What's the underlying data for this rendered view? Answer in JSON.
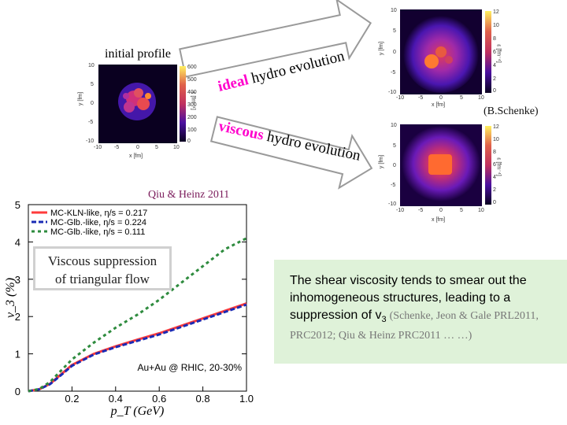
{
  "annotations": {
    "initial_profile": "initial profile",
    "ideal_word": "ideal",
    "ideal_rest": " hydro evolution",
    "viscous_word": "viscous",
    "viscous_rest": " hydro evolution",
    "schenke_credit": "(B.Schenke)",
    "qiu_credit": "Qiu & Heinz 2011"
  },
  "callout": {
    "line1": "Viscous suppression",
    "line2": "of triangular flow"
  },
  "note": {
    "text_before_v": "The shear viscosity tends to smear out the inhomogeneous structures, leading to a suppression of ",
    "v_symbol": "v",
    "v_subscript": "3",
    "citation": "(Schenke, Jeon & Gale PRL2011, PRC2012; Qiu & Heinz PRC2011 … …)"
  },
  "heatmaps": {
    "initial": {
      "x_label": "x [fm]",
      "y_label": "y [fm]",
      "cbar_label": "ε [fm⁻⁴]",
      "x_ticks": [
        "-10",
        "-5",
        "0",
        "5",
        "10"
      ],
      "y_ticks": [
        "10",
        "5",
        "0",
        "-5",
        "-10"
      ],
      "cbar_ticks": [
        "600",
        "500",
        "400",
        "300",
        "200",
        "100",
        "0"
      ]
    },
    "ideal": {
      "x_label": "x [fm]",
      "y_label": "y [fm]",
      "cbar_label": "ε [fm⁻⁴]",
      "x_ticks": [
        "-10",
        "-5",
        "0",
        "5",
        "10"
      ],
      "y_ticks": [
        "10",
        "5",
        "0",
        "-5",
        "-10"
      ],
      "cbar_ticks": [
        "12",
        "10",
        "8",
        "6",
        "4",
        "2",
        "0"
      ]
    },
    "viscous": {
      "x_label": "x [fm]",
      "y_label": "y [fm]",
      "cbar_label": "ε [fm⁻⁴]",
      "x_ticks": [
        "-10",
        "-5",
        "0",
        "5",
        "10"
      ],
      "y_ticks": [
        "10",
        "5",
        "0",
        "-5",
        "-10"
      ],
      "cbar_ticks": [
        "12",
        "10",
        "8",
        "6",
        "4",
        "2",
        "0"
      ]
    },
    "colors": {
      "cbar_top": "#fff060",
      "cbar_mid": "#c0305f",
      "cbar_low": "#4a0fa0",
      "cbar_bottom": "#0a0020"
    }
  },
  "chart_data": {
    "type": "line",
    "title": "",
    "xlabel": "p_T (GeV)",
    "ylabel": "v_3 (%)",
    "xlim": [
      0,
      1.0
    ],
    "ylim": [
      0,
      5
    ],
    "x_ticks": [
      "0.2",
      "0.4",
      "0.6",
      "0.8",
      "1.0"
    ],
    "y_ticks": [
      "0",
      "1",
      "2",
      "3",
      "4",
      "5"
    ],
    "annotation": "Au+Au @ RHIC, 20-30%",
    "legend_position": "top-left",
    "series": [
      {
        "name": "MC-KLN-like, η/s = 0.217",
        "color": "#ff3b3b",
        "style": "solid",
        "x": [
          0.0,
          0.05,
          0.1,
          0.15,
          0.2,
          0.3,
          0.4,
          0.5,
          0.6,
          0.7,
          0.8,
          0.9,
          1.0
        ],
        "y": [
          0.0,
          0.05,
          0.2,
          0.45,
          0.7,
          1.0,
          1.2,
          1.38,
          1.55,
          1.75,
          1.95,
          2.15,
          2.35
        ]
      },
      {
        "name": "MC-Glb.-like, η/s = 0.224",
        "color": "#1a2bb5",
        "style": "dashed",
        "x": [
          0.0,
          0.05,
          0.1,
          0.15,
          0.2,
          0.3,
          0.4,
          0.5,
          0.6,
          0.7,
          0.8,
          0.9,
          1.0
        ],
        "y": [
          0.0,
          0.05,
          0.19,
          0.43,
          0.68,
          0.98,
          1.18,
          1.35,
          1.52,
          1.72,
          1.92,
          2.12,
          2.32
        ]
      },
      {
        "name": "MC-Glb.-like, η/s = 0.111",
        "color": "#2e8b3e",
        "style": "dotted",
        "x": [
          0.0,
          0.05,
          0.1,
          0.15,
          0.2,
          0.3,
          0.4,
          0.5,
          0.6,
          0.7,
          0.8,
          0.9,
          1.0
        ],
        "y": [
          0.0,
          0.06,
          0.25,
          0.55,
          0.85,
          1.3,
          1.7,
          2.05,
          2.45,
          2.9,
          3.35,
          3.8,
          4.1
        ]
      }
    ]
  }
}
